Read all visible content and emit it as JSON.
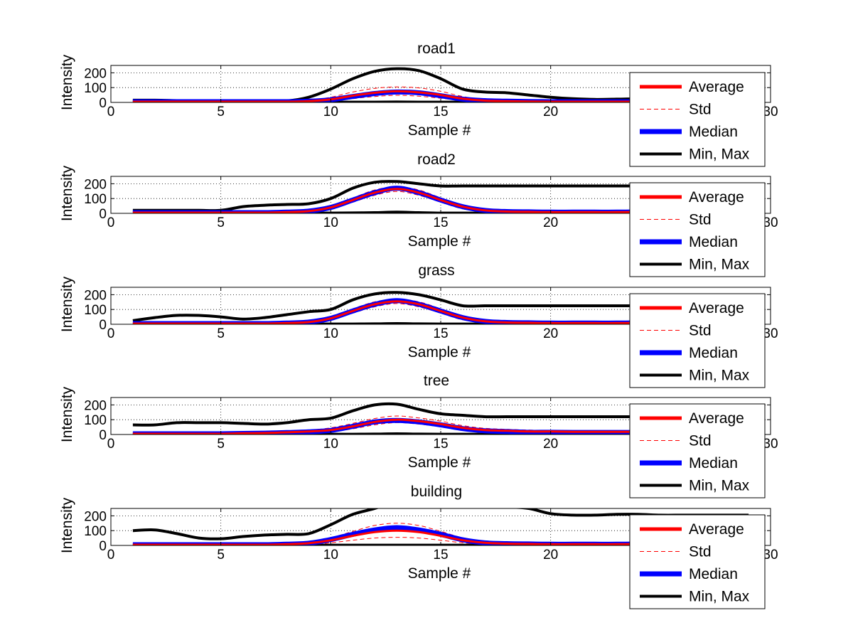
{
  "figure": {
    "background": "#ffffff"
  },
  "colors": {
    "average": "#ff0000",
    "std": "#ff0000",
    "median": "#0000ff",
    "minmax": "#000000"
  },
  "legend": {
    "placement": "right",
    "entries": [
      "Average",
      "Std",
      "Median",
      "Min, Max"
    ]
  },
  "chart_data": [
    {
      "type": "line",
      "title": "road1",
      "xlabel": "Sample #",
      "ylabel": "Intensity",
      "xlim": [
        0,
        30
      ],
      "ylim": [
        0,
        250
      ],
      "xticks": [
        0,
        5,
        10,
        15,
        20,
        30
      ],
      "yticks": [
        0,
        100,
        200
      ],
      "grid": true,
      "x": [
        1,
        2,
        3,
        4,
        5,
        6,
        7,
        8,
        9,
        10,
        11,
        12,
        13,
        14,
        15,
        16,
        17,
        18,
        19,
        20,
        21,
        22,
        23,
        24,
        25,
        26,
        27,
        28,
        29
      ],
      "series": [
        {
          "name": "Average",
          "values": [
            5,
            5,
            5,
            5,
            5,
            5,
            5,
            5,
            8,
            20,
            45,
            65,
            75,
            68,
            50,
            25,
            12,
            8,
            6,
            5,
            5,
            5,
            5,
            5,
            5,
            5,
            5,
            5,
            5
          ]
        },
        {
          "name": "Std",
          "upper": [
            10,
            10,
            10,
            10,
            10,
            10,
            10,
            10,
            15,
            35,
            70,
            95,
            105,
            98,
            75,
            40,
            20,
            13,
            10,
            10,
            10,
            10,
            10,
            10,
            10,
            10,
            10,
            10,
            10
          ],
          "lower": [
            1,
            1,
            1,
            1,
            1,
            1,
            1,
            1,
            2,
            8,
            25,
            40,
            48,
            42,
            28,
            12,
            5,
            3,
            2,
            1,
            1,
            1,
            1,
            1,
            1,
            1,
            1,
            1,
            1
          ]
        },
        {
          "name": "Median",
          "values": [
            5,
            5,
            5,
            5,
            5,
            5,
            5,
            5,
            8,
            18,
            40,
            60,
            70,
            65,
            45,
            22,
            12,
            8,
            6,
            5,
            5,
            5,
            5,
            5,
            5,
            5,
            5,
            5,
            5
          ]
        },
        {
          "name": "Min, Max",
          "max": [
            15,
            15,
            12,
            10,
            8,
            8,
            8,
            10,
            35,
            90,
            160,
            210,
            228,
            215,
            160,
            90,
            70,
            65,
            50,
            35,
            25,
            20,
            22,
            25,
            25,
            25,
            25,
            25,
            25
          ],
          "min": [
            2,
            2,
            2,
            2,
            2,
            2,
            2,
            2,
            2,
            2,
            2,
            2,
            3,
            2,
            2,
            2,
            2,
            2,
            2,
            2,
            2,
            2,
            2,
            2,
            2,
            2,
            2,
            2,
            2
          ]
        }
      ]
    },
    {
      "type": "line",
      "title": "road2",
      "xlabel": "Sample #",
      "ylabel": "Intensity",
      "xlim": [
        0,
        30
      ],
      "ylim": [
        0,
        250
      ],
      "xticks": [
        0,
        5,
        10,
        15,
        20,
        30
      ],
      "yticks": [
        0,
        100,
        200
      ],
      "grid": true,
      "x": [
        1,
        2,
        3,
        4,
        5,
        6,
        7,
        8,
        9,
        10,
        11,
        12,
        13,
        14,
        15,
        16,
        17,
        18,
        19,
        20,
        21,
        22,
        23,
        24,
        25,
        26,
        27,
        28,
        29
      ],
      "series": [
        {
          "name": "Average",
          "values": [
            5,
            5,
            5,
            5,
            5,
            5,
            5,
            8,
            15,
            40,
            90,
            140,
            165,
            140,
            90,
            45,
            20,
            12,
            10,
            8,
            8,
            8,
            8,
            10,
            10,
            12,
            12,
            12,
            12
          ]
        },
        {
          "name": "Std",
          "upper": [
            10,
            10,
            10,
            10,
            10,
            10,
            10,
            14,
            25,
            55,
            105,
            158,
            180,
            158,
            105,
            55,
            28,
            18,
            15,
            12,
            12,
            12,
            12,
            15,
            15,
            18,
            18,
            18,
            18
          ],
          "lower": [
            1,
            1,
            1,
            1,
            1,
            1,
            1,
            3,
            8,
            28,
            75,
            122,
            148,
            122,
            75,
            30,
            12,
            6,
            5,
            4,
            4,
            4,
            4,
            5,
            5,
            6,
            6,
            6,
            6
          ]
        },
        {
          "name": "Median",
          "values": [
            5,
            5,
            5,
            5,
            5,
            5,
            5,
            8,
            15,
            40,
            90,
            140,
            170,
            140,
            90,
            45,
            20,
            12,
            10,
            8,
            8,
            8,
            8,
            10,
            10,
            12,
            12,
            12,
            12
          ]
        },
        {
          "name": "Min, Max",
          "max": [
            20,
            20,
            20,
            20,
            20,
            45,
            55,
            60,
            65,
            100,
            170,
            210,
            215,
            200,
            185,
            185,
            185,
            185,
            185,
            185,
            185,
            185,
            185,
            185,
            185,
            185,
            185,
            185,
            185
          ],
          "min": [
            2,
            2,
            2,
            2,
            2,
            2,
            2,
            2,
            2,
            2,
            3,
            5,
            8,
            5,
            2,
            2,
            2,
            2,
            2,
            2,
            2,
            2,
            2,
            2,
            2,
            2,
            2,
            2,
            2
          ]
        }
      ]
    },
    {
      "type": "line",
      "title": "grass",
      "xlabel": "Sample #",
      "ylabel": "Intensity",
      "xlim": [
        0,
        30
      ],
      "ylim": [
        0,
        250
      ],
      "xticks": [
        0,
        5,
        10,
        15,
        20,
        30
      ],
      "yticks": [
        0,
        100,
        200
      ],
      "grid": true,
      "x": [
        1,
        2,
        3,
        4,
        5,
        6,
        7,
        8,
        9,
        10,
        11,
        12,
        13,
        14,
        15,
        16,
        17,
        18,
        19,
        20,
        21,
        22,
        23,
        24,
        25,
        26,
        27,
        28,
        29
      ],
      "series": [
        {
          "name": "Average",
          "values": [
            5,
            5,
            5,
            5,
            5,
            5,
            5,
            8,
            15,
            40,
            90,
            135,
            155,
            135,
            90,
            45,
            20,
            12,
            10,
            8,
            8,
            8,
            8,
            10,
            10,
            12,
            12,
            12,
            12
          ]
        },
        {
          "name": "Std",
          "upper": [
            10,
            10,
            10,
            10,
            10,
            10,
            10,
            14,
            25,
            55,
            105,
            152,
            170,
            152,
            105,
            55,
            28,
            18,
            15,
            12,
            12,
            12,
            12,
            15,
            15,
            18,
            18,
            18,
            18
          ],
          "lower": [
            1,
            1,
            1,
            1,
            1,
            1,
            1,
            3,
            8,
            28,
            75,
            118,
            140,
            118,
            75,
            30,
            12,
            6,
            5,
            4,
            4,
            4,
            4,
            5,
            5,
            6,
            6,
            6,
            6
          ]
        },
        {
          "name": "Median",
          "values": [
            5,
            5,
            5,
            5,
            5,
            5,
            5,
            8,
            15,
            40,
            90,
            135,
            160,
            135,
            90,
            45,
            20,
            12,
            10,
            8,
            8,
            8,
            8,
            10,
            10,
            12,
            12,
            12,
            12
          ]
        },
        {
          "name": "Min, Max",
          "max": [
            25,
            45,
            60,
            60,
            50,
            35,
            45,
            65,
            85,
            100,
            165,
            205,
            215,
            200,
            165,
            125,
            125,
            125,
            125,
            125,
            125,
            125,
            125,
            125,
            125,
            125,
            125,
            125,
            125
          ],
          "min": [
            2,
            2,
            2,
            2,
            2,
            2,
            2,
            2,
            2,
            2,
            2,
            3,
            5,
            3,
            2,
            2,
            2,
            2,
            2,
            2,
            2,
            2,
            2,
            2,
            2,
            2,
            2,
            2,
            2
          ]
        }
      ]
    },
    {
      "type": "line",
      "title": "tree",
      "xlabel": "Sample #",
      "ylabel": "Intensity",
      "xlim": [
        0,
        30
      ],
      "ylim": [
        0,
        250
      ],
      "xticks": [
        0,
        5,
        10,
        15,
        20,
        30
      ],
      "yticks": [
        0,
        100,
        200
      ],
      "grid": true,
      "x": [
        1,
        2,
        3,
        4,
        5,
        6,
        7,
        8,
        9,
        10,
        11,
        12,
        13,
        14,
        15,
        16,
        17,
        18,
        19,
        20,
        21,
        22,
        23,
        24,
        25,
        26,
        27,
        28,
        29
      ],
      "series": [
        {
          "name": "Average",
          "values": [
            5,
            5,
            5,
            5,
            5,
            8,
            10,
            15,
            20,
            30,
            55,
            85,
            100,
            90,
            70,
            45,
            30,
            25,
            20,
            20,
            18,
            18,
            18,
            18,
            18,
            18,
            18,
            18,
            18
          ]
        },
        {
          "name": "Std",
          "upper": [
            10,
            10,
            10,
            10,
            10,
            14,
            16,
            22,
            30,
            45,
            75,
            108,
            125,
            112,
            90,
            60,
            42,
            35,
            30,
            28,
            26,
            26,
            26,
            26,
            26,
            26,
            26,
            26,
            26
          ],
          "lower": [
            1,
            1,
            1,
            1,
            1,
            3,
            5,
            8,
            12,
            18,
            38,
            65,
            80,
            70,
            52,
            32,
            20,
            16,
            12,
            12,
            10,
            10,
            10,
            10,
            10,
            10,
            10,
            10,
            10
          ]
        },
        {
          "name": "Median",
          "values": [
            5,
            5,
            5,
            5,
            5,
            7,
            9,
            13,
            18,
            28,
            55,
            85,
            95,
            85,
            65,
            40,
            25,
            20,
            15,
            15,
            14,
            14,
            14,
            14,
            14,
            14,
            14,
            14,
            14
          ]
        },
        {
          "name": "Min, Max",
          "max": [
            65,
            65,
            80,
            80,
            80,
            75,
            70,
            80,
            100,
            110,
            160,
            200,
            205,
            170,
            140,
            130,
            120,
            120,
            120,
            120,
            120,
            120,
            120,
            120,
            120,
            120,
            120,
            120,
            120
          ],
          "min": [
            2,
            2,
            2,
            2,
            2,
            2,
            2,
            2,
            2,
            2,
            2,
            3,
            5,
            3,
            2,
            2,
            2,
            2,
            2,
            2,
            2,
            2,
            2,
            2,
            2,
            2,
            2,
            2,
            2
          ]
        }
      ]
    },
    {
      "type": "line",
      "title": "building",
      "xlabel": "Sample #",
      "ylabel": "Intensity",
      "xlim": [
        0,
        30
      ],
      "ylim": [
        0,
        250
      ],
      "xticks": [
        0,
        5,
        10,
        15,
        20,
        30
      ],
      "yticks": [
        0,
        100,
        200
      ],
      "grid": true,
      "x": [
        1,
        2,
        3,
        4,
        5,
        6,
        7,
        8,
        9,
        10,
        11,
        12,
        13,
        14,
        15,
        16,
        17,
        18,
        19,
        20,
        21,
        22,
        23,
        24,
        25,
        26,
        27,
        28,
        29
      ],
      "series": [
        {
          "name": "Average",
          "values": [
            5,
            5,
            5,
            5,
            5,
            5,
            5,
            8,
            15,
            35,
            65,
            90,
            100,
            90,
            65,
            35,
            18,
            12,
            10,
            8,
            8,
            8,
            8,
            10,
            10,
            10,
            10,
            10,
            10
          ]
        },
        {
          "name": "Std",
          "upper": [
            10,
            10,
            10,
            10,
            10,
            10,
            10,
            14,
            25,
            52,
            95,
            135,
            150,
            135,
            95,
            52,
            28,
            18,
            15,
            12,
            12,
            12,
            12,
            15,
            15,
            15,
            15,
            15,
            15
          ],
          "lower": [
            1,
            1,
            1,
            1,
            1,
            1,
            1,
            3,
            6,
            18,
            35,
            50,
            55,
            50,
            35,
            18,
            8,
            5,
            4,
            3,
            3,
            3,
            3,
            4,
            4,
            4,
            4,
            4,
            4
          ]
        },
        {
          "name": "Median",
          "values": [
            5,
            5,
            5,
            5,
            5,
            5,
            5,
            8,
            15,
            40,
            75,
            105,
            120,
            105,
            75,
            38,
            18,
            12,
            10,
            8,
            8,
            8,
            8,
            10,
            10,
            10,
            10,
            10,
            10
          ]
        },
        {
          "name": "Min, Max",
          "max": [
            100,
            105,
            80,
            50,
            45,
            60,
            70,
            75,
            80,
            140,
            210,
            250,
            300,
            300,
            300,
            290,
            270,
            260,
            250,
            215,
            205,
            205,
            210,
            210,
            205,
            205,
            205,
            205,
            205
          ],
          "min": [
            2,
            2,
            2,
            2,
            2,
            2,
            2,
            2,
            2,
            2,
            2,
            2,
            2,
            2,
            2,
            2,
            2,
            2,
            2,
            2,
            2,
            2,
            2,
            2,
            2,
            2,
            2,
            2,
            2
          ]
        }
      ]
    }
  ]
}
